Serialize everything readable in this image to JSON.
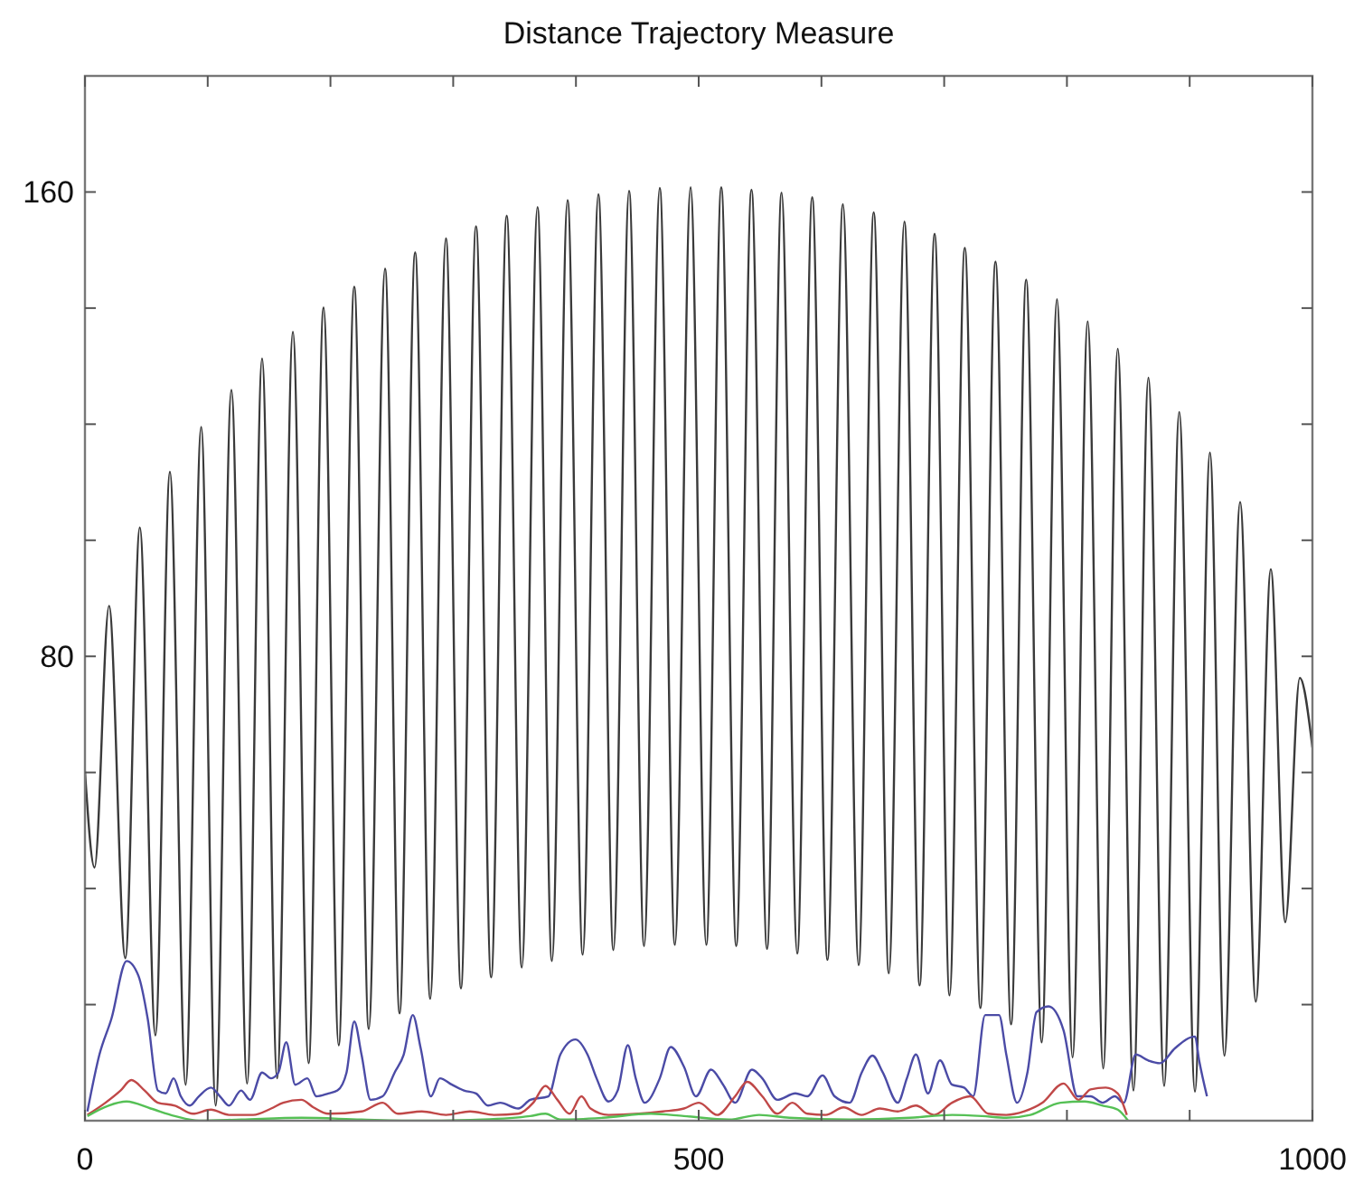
{
  "chart_data": {
    "type": "line",
    "title": "Distance Trajectory Measure",
    "xlim": [
      0,
      1000
    ],
    "ylim": [
      0,
      180
    ],
    "xticks": [
      0,
      {
        "value": 100,
        "label": null
      },
      {
        "value": 200,
        "label": null
      },
      {
        "value": 300,
        "label": null
      },
      {
        "value": 400,
        "label": null
      },
      500,
      {
        "value": 600,
        "label": null
      },
      {
        "value": 700,
        "label": null
      },
      {
        "value": 800,
        "label": null
      },
      {
        "value": 900,
        "label": null
      },
      1000
    ],
    "yticks": [
      {
        "value": 20,
        "label": null
      },
      {
        "value": 40,
        "label": null
      },
      {
        "value": 60,
        "label": null
      },
      80,
      {
        "value": 100,
        "label": null
      },
      {
        "value": 120,
        "label": null
      },
      {
        "value": 140,
        "label": null
      },
      160
    ],
    "series": [
      {
        "color": "#3a3a3a",
        "x": [
          0,
          7.8,
          19.6,
          32.9,
          44.7,
          57.4,
          69.2,
          82.0,
          94.7,
          106.5,
          119.3,
          132.1,
          144.3,
          156.6,
          169.4,
          182.2,
          194.4,
          206.7,
          219.4,
          231.2,
          244.5,
          256.3,
          269.0,
          281.3,
          294.1,
          306.3,
          318.6,
          330.9,
          343.6,
          355.9,
          368.7,
          380.4,
          393.2,
          405.5,
          418.3,
          430.5,
          443.3,
          455.5,
          468.3,
          480.6,
          493.4,
          506.2,
          518.4,
          530.6,
          543,
          555.7,
          567.5,
          580.3,
          592.5,
          604.9,
          617.5,
          630.3,
          642.6,
          654.9,
          667.6,
          680,
          692.2,
          704.4,
          716.8,
          729.5,
          741.8,
          754.5,
          766.8,
          779.5,
          791.9,
          804.6,
          816.9,
          829.6,
          841.4,
          854.2,
          866.4,
          879.2,
          891.5,
          904.3,
          916.5,
          928.3,
          941.1,
          953.9,
          966.1,
          977.9,
          989.7,
          1000
        ],
        "values": [
          60.2,
          43.6,
          88.7,
          28.0,
          102.2,
          14.7,
          111.8,
          6.2,
          119.5,
          2.6,
          125.9,
          6.4,
          131.3,
          7.3,
          135.9,
          9.9,
          140.1,
          13.0,
          143.7,
          15.8,
          146.8,
          18.5,
          149.6,
          21.0,
          152.0,
          22.8,
          154.1,
          24.7,
          155.9,
          26.4,
          157.4,
          27.5,
          158.6,
          28.6,
          159.6,
          29.4,
          160.2,
          30.1,
          160.7,
          30.3,
          160.8,
          30.3,
          160.8,
          30.1,
          160.4,
          29.6,
          159.9,
          28.8,
          159.1,
          27.7,
          157.9,
          26.8,
          156.5,
          25.4,
          154.9,
          23.3,
          152.8,
          21.6,
          150.4,
          19.4,
          148.0,
          16.6,
          144.9,
          13.5,
          141.5,
          10.9,
          137.7,
          9.0,
          133.0,
          5.2,
          128.0,
          6.0,
          122.1,
          5.0,
          115.1,
          11.2,
          106.6,
          20.5,
          95.0,
          34.2,
          76.3,
          64.3
        ]
      },
      {
        "color": "#4b4ba6",
        "x": [
          2.0,
          11.8,
          21.6,
          33.9,
          43.7,
          51.1,
          59.4,
          65.8,
          72.2,
          78.1,
          85.4,
          92.8,
          102.6,
          110.0,
          117.3,
          127.2,
          134.5,
          144.3,
          151.7,
          157.6,
          164.0,
          171.3,
          181.2,
          188.5,
          198.3,
          205.7,
          213.1,
          219.4,
          225.3,
          232.7,
          242.5,
          252.3,
          259.7,
          267.1,
          273.5,
          281.8,
          289.2,
          299.0,
          308.8,
          318.6,
          328.4,
          338.2,
          353.0,
          362.8,
          377.5,
          387.3,
          399.6,
          409.4,
          416.8,
          426.6,
          434.0,
          442.3,
          448.7,
          456.1,
          468.3,
          477.2,
          488.0,
          497.8,
          510.1,
          519.9,
          529.7,
          543.4,
          551.8,
          564.1,
          578.8,
          588.6,
          600.9,
          610.7,
          623.0,
          632.8,
          641.6,
          650.0,
          662.2,
          669.6,
          677.0,
          686.8,
          696.6,
          706.4,
          716.2,
          723.6,
          733.4,
          744.7,
          750.6,
          759.4,
          767.8,
          775.2,
          785.0,
          797.2,
          808.5,
          819.3,
          829.1,
          839.0,
          846.3,
          856.1,
          866.0,
          875.8,
          888.1,
          904.3,
          907.7,
          914.1
        ],
        "values": [
          1.6,
          11.4,
          17.6,
          27.5,
          24.9,
          17.6,
          5.2,
          4.7,
          7.3,
          4.2,
          2.6,
          4.2,
          5.7,
          4.2,
          2.6,
          5.2,
          3.6,
          8.3,
          7.3,
          8.3,
          13.5,
          6.2,
          7.3,
          4.2,
          4.7,
          5.2,
          8.3,
          17.1,
          11.4,
          3.6,
          4.2,
          8.3,
          11.4,
          18.2,
          12.5,
          4.2,
          7.3,
          6.2,
          5.2,
          4.7,
          2.6,
          3.1,
          2.1,
          3.6,
          4.2,
          11.4,
          14.0,
          11.4,
          7.3,
          3.3,
          5.2,
          13.0,
          7.3,
          3.1,
          7.3,
          12.7,
          9.3,
          4.2,
          8.8,
          6.2,
          3.1,
          8.8,
          7.3,
          3.6,
          4.7,
          4.2,
          7.8,
          4.2,
          3.1,
          8.3,
          11.2,
          8.3,
          3.1,
          7.3,
          11.4,
          4.7,
          10.4,
          6.2,
          5.7,
          4.2,
          18.2,
          18.2,
          11.4,
          3.1,
          8.3,
          18.7,
          19.7,
          15.6,
          4.2,
          4.2,
          3.1,
          4.2,
          3.1,
          11.4,
          10.4,
          9.9,
          12.5,
          14.5,
          10.4,
          4.2
        ]
      },
      {
        "color": "#c04848",
        "x": [
          2.0,
          16.7,
          29.0,
          37.8,
          48.6,
          59.4,
          73.2,
          87.9,
          102.6,
          117.3,
          137.0,
          151.7,
          161.5,
          176.3,
          186.1,
          198.3,
          225.3,
          242.5,
          254.8,
          274.4,
          294.1,
          313.7,
          333.3,
          353.0,
          365.2,
          375.1,
          384.9,
          394.7,
          404.5,
          411.9,
          426.6,
          451.2,
          470.8,
          488.0,
          500.2,
          515.0,
          529.7,
          539.5,
          551.8,
          564.1,
          576.3,
          588.6,
          603.3,
          618.1,
          632.8,
          647.5,
          662.2,
          677.0,
          691.7,
          706.4,
          721.2,
          735.9,
          750.6,
          765.3,
          780.1,
          797.2,
          809.5,
          819.3,
          831.6,
          841.4,
          848.8
        ],
        "values": [
          1.0,
          3.1,
          5.2,
          7.0,
          5.2,
          3.1,
          2.6,
          1.2,
          1.9,
          1.0,
          1.0,
          2.1,
          3.1,
          3.6,
          2.3,
          1.2,
          1.6,
          3.1,
          1.2,
          1.6,
          1.0,
          1.6,
          1.0,
          1.2,
          3.1,
          6.0,
          3.6,
          1.2,
          4.2,
          2.1,
          1.0,
          1.2,
          1.6,
          2.1,
          3.1,
          1.0,
          4.2,
          6.7,
          4.2,
          1.2,
          3.1,
          1.2,
          1.0,
          2.3,
          1.0,
          2.1,
          1.6,
          2.6,
          1.0,
          3.1,
          4.2,
          1.2,
          1.0,
          1.6,
          3.1,
          6.4,
          3.6,
          5.4,
          5.7,
          4.7,
          1.0
        ]
      },
      {
        "color": "#55c055",
        "x": [
          2.0,
          19.2,
          33.9,
          53.5,
          73.2,
          92.8,
          127.2,
          176.3,
          225.3,
          274.4,
          323.5,
          362.8,
          375.1,
          387.3,
          421.7,
          461.0,
          488.0,
          524.8,
          549.3,
          573.9,
          623.0,
          672.1,
          706.4,
          731.0,
          750.6,
          770.2,
          794.8,
          814.4,
          829.1,
          841.4,
          849.8
        ],
        "values": [
          0.8,
          2.6,
          3.3,
          2.1,
          0.8,
          0,
          0.2,
          0.5,
          0.2,
          0,
          0.2,
          0.8,
          1.2,
          0.2,
          0.5,
          1.2,
          0.8,
          0.2,
          1.0,
          0.5,
          0.2,
          0.5,
          1.0,
          0.8,
          0.5,
          1.0,
          3.1,
          3.3,
          2.6,
          1.9,
          0
        ]
      }
    ]
  }
}
